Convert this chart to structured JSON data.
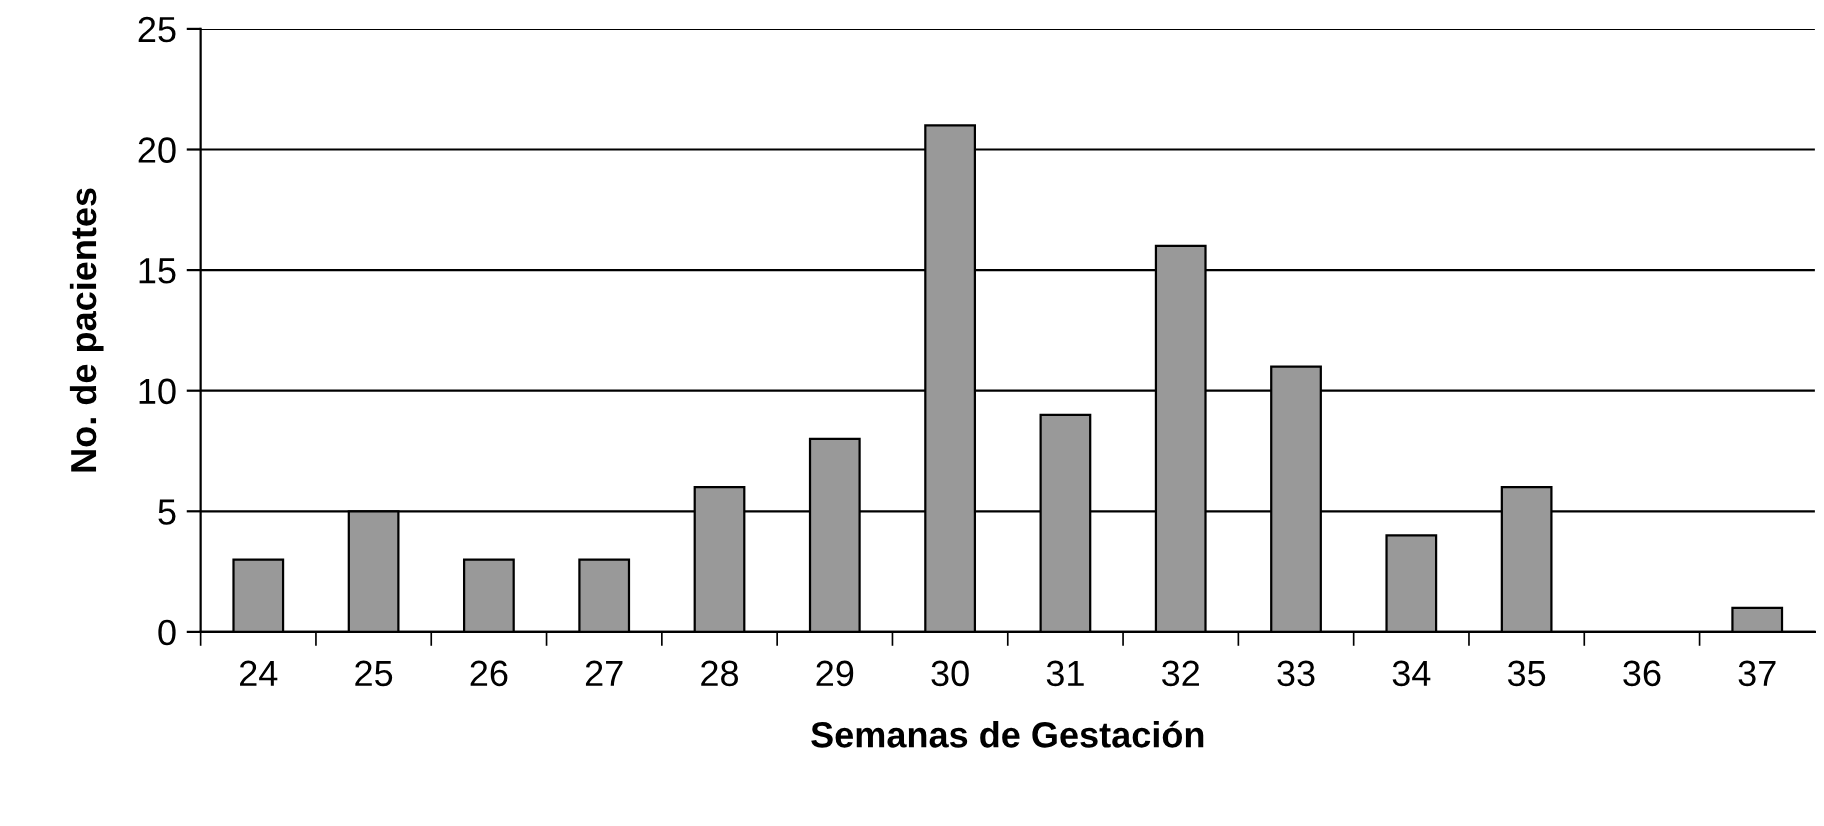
{
  "chart_data": {
    "type": "bar",
    "xlabel": "Semanas de Gestación",
    "ylabel": "No. de pacientes",
    "categories": [
      "24",
      "25",
      "26",
      "27",
      "28",
      "29",
      "30",
      "31",
      "32",
      "33",
      "34",
      "35",
      "36",
      "37"
    ],
    "values": [
      3,
      5,
      3,
      3,
      6,
      8,
      21,
      9,
      16,
      11,
      4,
      6,
      0,
      1
    ],
    "color": "#999999",
    "ylim": [
      0,
      25
    ],
    "yticks": [
      0,
      5,
      10,
      15,
      20,
      25
    ],
    "grid": "y",
    "legend": false
  }
}
